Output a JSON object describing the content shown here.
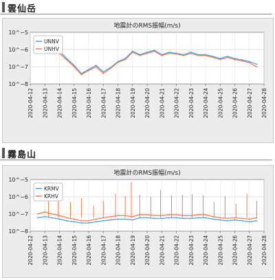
{
  "sections": [
    {
      "title": "雲仙岳"
    },
    {
      "title": "霧島山"
    }
  ],
  "chart_data": [
    {
      "type": "line",
      "title": "地震計のRMS振幅(m/s)",
      "yscale": "log",
      "ylim": [
        1e-08,
        1e-05
      ],
      "yticks": [
        "10^−5",
        "10^−6",
        "10^−7",
        "10^−8"
      ],
      "xlim": [
        "2020-04-12",
        "2020-04-28"
      ],
      "xticks": [
        "2020-04-12",
        "2020-04-13",
        "2020-04-14",
        "2020-04-15",
        "2020-04-16",
        "2020-04-17",
        "2020-04-18",
        "2020-04-19",
        "2020-04-20",
        "2020-04-21",
        "2020-04-22",
        "2020-04-23",
        "2020-04-24",
        "2020-04-25",
        "2020-04-26",
        "2020-04-27",
        "2020-04-28"
      ],
      "legend_position": "top-left",
      "series": [
        {
          "name": "UNNV",
          "color": "#4a9ff5",
          "x": [
            "2020-04-14",
            "2020-04-14T12:00",
            "2020-04-15",
            "2020-04-15T12:00",
            "2020-04-16",
            "2020-04-16T12:00",
            "2020-04-17",
            "2020-04-17T12:00",
            "2020-04-18",
            "2020-04-18T12:00",
            "2020-04-19",
            "2020-04-19T12:00",
            "2020-04-20",
            "2020-04-20T12:00",
            "2020-04-21",
            "2020-04-21T12:00",
            "2020-04-22",
            "2020-04-22T12:00",
            "2020-04-23",
            "2020-04-23T12:00",
            "2020-04-24",
            "2020-04-24T12:00",
            "2020-04-25",
            "2020-04-25T12:00",
            "2020-04-26",
            "2020-04-26T12:00",
            "2020-04-27",
            "2020-04-27T12:00"
          ],
          "y": [
            8e-07,
            3e-07,
            1.2e-07,
            4e-08,
            7e-08,
            1.2e-07,
            5e-08,
            9e-08,
            2e-07,
            3e-07,
            8e-07,
            5e-07,
            7e-07,
            9e-07,
            5e-07,
            7e-07,
            6e-07,
            5e-07,
            7e-07,
            5e-07,
            5e-07,
            4e-07,
            3e-07,
            4e-07,
            3e-07,
            2.5e-07,
            2e-07,
            1.4e-07
          ]
        },
        {
          "name": "UNHV",
          "color": "#f07e50",
          "x": [
            "2020-04-14",
            "2020-04-14T12:00",
            "2020-04-15",
            "2020-04-15T12:00",
            "2020-04-16",
            "2020-04-16T12:00",
            "2020-04-17",
            "2020-04-17T12:00",
            "2020-04-18",
            "2020-04-18T12:00",
            "2020-04-19",
            "2020-04-19T12:00",
            "2020-04-20",
            "2020-04-20T12:00",
            "2020-04-21",
            "2020-04-21T12:00",
            "2020-04-22",
            "2020-04-22T12:00",
            "2020-04-23",
            "2020-04-23T12:00",
            "2020-04-24",
            "2020-04-24T12:00",
            "2020-04-25",
            "2020-04-25T12:00",
            "2020-04-26",
            "2020-04-26T12:00",
            "2020-04-27",
            "2020-04-27T12:00"
          ],
          "y": [
            6e-07,
            2.5e-07,
            1e-07,
            3.5e-08,
            6e-08,
            1e-07,
            4e-08,
            8e-08,
            1.8e-07,
            2.6e-07,
            7e-07,
            4.5e-07,
            6e-07,
            8e-07,
            4.5e-07,
            6e-07,
            5.5e-07,
            4.5e-07,
            6e-07,
            4.5e-07,
            4.5e-07,
            3.5e-07,
            2.6e-07,
            3.5e-07,
            2.6e-07,
            2.2e-07,
            1.7e-07,
            1e-07
          ]
        }
      ]
    },
    {
      "type": "line",
      "title": "地震計のRMS振幅(m/s)",
      "yscale": "log",
      "ylim": [
        1e-08,
        1e-05
      ],
      "yticks": [
        "10^−5",
        "10^−6",
        "10^−7",
        "10^−8"
      ],
      "xlim": [
        "2020-04-12",
        "2020-04-28"
      ],
      "xticks": [
        "2020-04-12",
        "2020-04-13",
        "2020-04-14",
        "2020-04-15",
        "2020-04-16",
        "2020-04-17",
        "2020-04-18",
        "2020-04-19",
        "2020-04-20",
        "2020-04-21",
        "2020-04-22",
        "2020-04-23",
        "2020-04-24",
        "2020-04-25",
        "2020-04-26",
        "2020-04-27",
        "2020-04-28"
      ],
      "legend_position": "top-left",
      "series": [
        {
          "name": "KRMV",
          "color": "#4a9ff5",
          "x": [
            "2020-04-12T12:00",
            "2020-04-13",
            "2020-04-13T12:00",
            "2020-04-14",
            "2020-04-14T12:00",
            "2020-04-15",
            "2020-04-15T12:00",
            "2020-04-16",
            "2020-04-16T12:00",
            "2020-04-17",
            "2020-04-17T12:00",
            "2020-04-18",
            "2020-04-18T12:00",
            "2020-04-19",
            "2020-04-19T12:00",
            "2020-04-20",
            "2020-04-20T12:00",
            "2020-04-21",
            "2020-04-21T12:00",
            "2020-04-22",
            "2020-04-22T12:00",
            "2020-04-23",
            "2020-04-23T12:00",
            "2020-04-24",
            "2020-04-24T12:00",
            "2020-04-25",
            "2020-04-25T12:00",
            "2020-04-26",
            "2020-04-26T12:00",
            "2020-04-27",
            "2020-04-27T12:00"
          ],
          "y": [
            6e-08,
            7e-08,
            6e-08,
            5e-08,
            4e-08,
            3.5e-08,
            3e-08,
            3e-08,
            3.5e-08,
            4e-08,
            4.5e-08,
            5e-08,
            5e-08,
            4.5e-08,
            6e-08,
            6e-08,
            5.5e-08,
            5.5e-08,
            6e-08,
            6e-08,
            5.5e-08,
            5.5e-08,
            6e-08,
            6e-08,
            5e-08,
            4.5e-08,
            4e-08,
            4.5e-08,
            4e-08,
            3.5e-08,
            4e-08
          ]
        },
        {
          "name": "KRHV",
          "color": "#f07e50",
          "x": [
            "2020-04-12T12:00",
            "2020-04-13",
            "2020-04-13T12:00",
            "2020-04-14",
            "2020-04-14T12:00",
            "2020-04-15",
            "2020-04-15T12:00",
            "2020-04-16",
            "2020-04-16T12:00",
            "2020-04-17",
            "2020-04-17T12:00",
            "2020-04-18",
            "2020-04-18T12:00",
            "2020-04-19",
            "2020-04-19T12:00",
            "2020-04-20",
            "2020-04-20T12:00",
            "2020-04-21",
            "2020-04-21T12:00",
            "2020-04-22",
            "2020-04-22T12:00",
            "2020-04-23",
            "2020-04-23T12:00",
            "2020-04-24",
            "2020-04-24T12:00",
            "2020-04-25",
            "2020-04-25T12:00",
            "2020-04-26",
            "2020-04-26T12:00",
            "2020-04-27",
            "2020-04-27T12:00"
          ],
          "y": [
            1e-07,
            1.3e-07,
            1e-07,
            8e-08,
            6e-08,
            5e-08,
            4e-08,
            4e-08,
            5e-08,
            6e-08,
            7e-08,
            8e-08,
            8e-08,
            7e-08,
            9e-08,
            9e-08,
            8e-08,
            8e-08,
            9e-08,
            9e-08,
            8e-08,
            8e-08,
            9e-08,
            9e-08,
            7e-08,
            6e-08,
            5.5e-08,
            6e-08,
            5.5e-08,
            5e-08,
            6e-08
          ],
          "spikes": [
            {
              "x": "2020-04-13T06:00",
              "y": 1.2e-06
            },
            {
              "x": "2020-04-13T22:00",
              "y": 8e-07
            },
            {
              "x": "2020-04-14T18:00",
              "y": 5e-07
            },
            {
              "x": "2020-04-15T12:00",
              "y": 8e-07
            },
            {
              "x": "2020-04-16T08:00",
              "y": 3e-07
            },
            {
              "x": "2020-04-17T00:00",
              "y": 6e-07
            },
            {
              "x": "2020-04-17T20:00",
              "y": 1.5e-06
            },
            {
              "x": "2020-04-18T12:00",
              "y": 1.1e-06
            },
            {
              "x": "2020-04-18T22:00",
              "y": 7e-06
            },
            {
              "x": "2020-04-19T12:00",
              "y": 1.3e-06
            },
            {
              "x": "2020-04-20T06:00",
              "y": 1e-06
            },
            {
              "x": "2020-04-20T22:00",
              "y": 2.5e-06
            },
            {
              "x": "2020-04-21T16:00",
              "y": 1.2e-06
            },
            {
              "x": "2020-04-22T10:00",
              "y": 1.3e-06
            },
            {
              "x": "2020-04-23T02:00",
              "y": 1.4e-06
            },
            {
              "x": "2020-04-23T20:00",
              "y": 1.2e-06
            },
            {
              "x": "2020-04-24T14:00",
              "y": 5e-07
            },
            {
              "x": "2020-04-25T08:00",
              "y": 1.1e-06
            },
            {
              "x": "2020-04-26T02:00",
              "y": 4e-07
            },
            {
              "x": "2020-04-26T20:00",
              "y": 1.5e-06
            },
            {
              "x": "2020-04-27T12:00",
              "y": 6e-07
            }
          ]
        }
      ]
    }
  ]
}
